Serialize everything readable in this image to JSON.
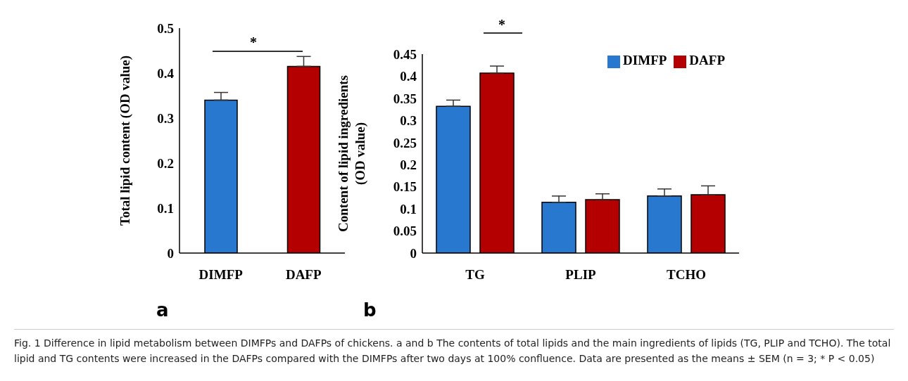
{
  "chart_data": [
    {
      "type": "bar",
      "ylabel": "Total lipid content (OD value)",
      "categories": [
        "DIMFP",
        "DAFP"
      ],
      "values": [
        0.34,
        0.415
      ],
      "colors": [
        "#2878d0",
        "#b40000"
      ],
      "errors": [
        0.017,
        0.022
      ],
      "ylim": [
        0,
        0.5
      ],
      "yticks": [
        0,
        0.1,
        0.2,
        0.3,
        0.4,
        0.5
      ],
      "grid": false,
      "legend": false,
      "annotations": [
        "*",
        "a"
      ]
    },
    {
      "type": "bar",
      "ylabel": "Content of lipid ingredients (OD value)",
      "categories": [
        "TG",
        "PLIP",
        "TCHO"
      ],
      "series": [
        {
          "name": "DIMFP",
          "color": "#2878d0",
          "values": [
            0.332,
            0.115,
            0.129
          ],
          "errors": [
            0.014,
            0.014,
            0.016
          ]
        },
        {
          "name": "DAFP",
          "color": "#b40000",
          "values": [
            0.407,
            0.121,
            0.132
          ],
          "errors": [
            0.016,
            0.013,
            0.02
          ]
        }
      ],
      "ylim": [
        0,
        0.45
      ],
      "yticks": [
        0,
        0.05,
        0.1,
        0.15,
        0.2,
        0.25,
        0.3,
        0.35,
        0.4,
        0.45
      ],
      "grid": false,
      "legend": "top right",
      "annotations": [
        "*",
        "b",
        "Fig. 1 Difference in lipid metabolism between DIMFPs and DAFPs of chickens. a and b The contents of total lipids and the main ingredients of lipids (TG, PLIP and TCHO). The total lipid and TG contents were increased in the DAFPs compared with the DIMFPs after two days at 100% confluence. Data are presented as the means ± SEM (n = 3; * P < 0.05)"
      ]
    }
  ]
}
